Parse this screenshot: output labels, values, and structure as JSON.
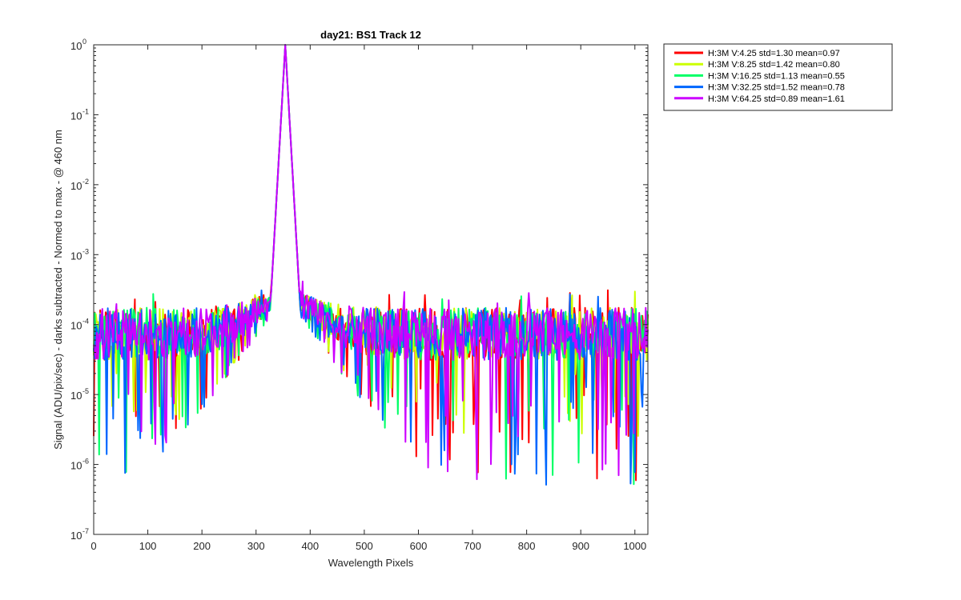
{
  "chart_data": {
    "type": "line",
    "title": "day21: BS1  Track 12",
    "xlabel": "Wavelength Pixels",
    "ylabel": "Signal (ADU/pix/sec) - darks subtracted - Normed to max - @ 460 nm",
    "xlim": [
      0,
      1024
    ],
    "ylim": [
      1e-07,
      1
    ],
    "yscale": "log",
    "xticks": [
      0,
      100,
      200,
      300,
      400,
      500,
      600,
      700,
      800,
      900,
      1000
    ],
    "xtick_labels": [
      "0",
      "100",
      "200",
      "300",
      "400",
      "500",
      "600",
      "700",
      "800",
      "900",
      "1000"
    ],
    "yticks": [
      1e-07,
      1e-06,
      1e-05,
      0.0001,
      0.001,
      0.01,
      0.1,
      1
    ],
    "ytick_labels": [
      {
        "base": "10",
        "exp": "-7"
      },
      {
        "base": "10",
        "exp": "-6"
      },
      {
        "base": "10",
        "exp": "-5"
      },
      {
        "base": "10",
        "exp": "-4"
      },
      {
        "base": "10",
        "exp": "-3"
      },
      {
        "base": "10",
        "exp": "-2"
      },
      {
        "base": "10",
        "exp": "-1"
      },
      {
        "base": "10",
        "exp": "0"
      }
    ],
    "peak_x": 354,
    "peak_value": 1.0,
    "noise_floor_typical": 8e-05,
    "legend_position": "outside-top-right",
    "series": [
      {
        "name": "H:3M V:4.25   std=1.30 mean=0.97",
        "color": "#ff0000",
        "min_dip": 5.8e-07
      },
      {
        "name": "H:3M V:8.25   std=1.42 mean=0.80",
        "color": "#ccff00",
        "min_dip": 2.4e-06
      },
      {
        "name": "H:3M V:16.25  std=1.13 mean=0.55",
        "color": "#00ff66",
        "min_dip": 5e-07
      },
      {
        "name": "H:3M V:32.25  std=1.52 mean=0.78",
        "color": "#0066ff",
        "min_dip": 5e-07
      },
      {
        "name": "H:3M V:64.25  std=0.89 mean=1.61",
        "color": "#cc00ff",
        "min_dip": 5.2e-07
      }
    ]
  }
}
